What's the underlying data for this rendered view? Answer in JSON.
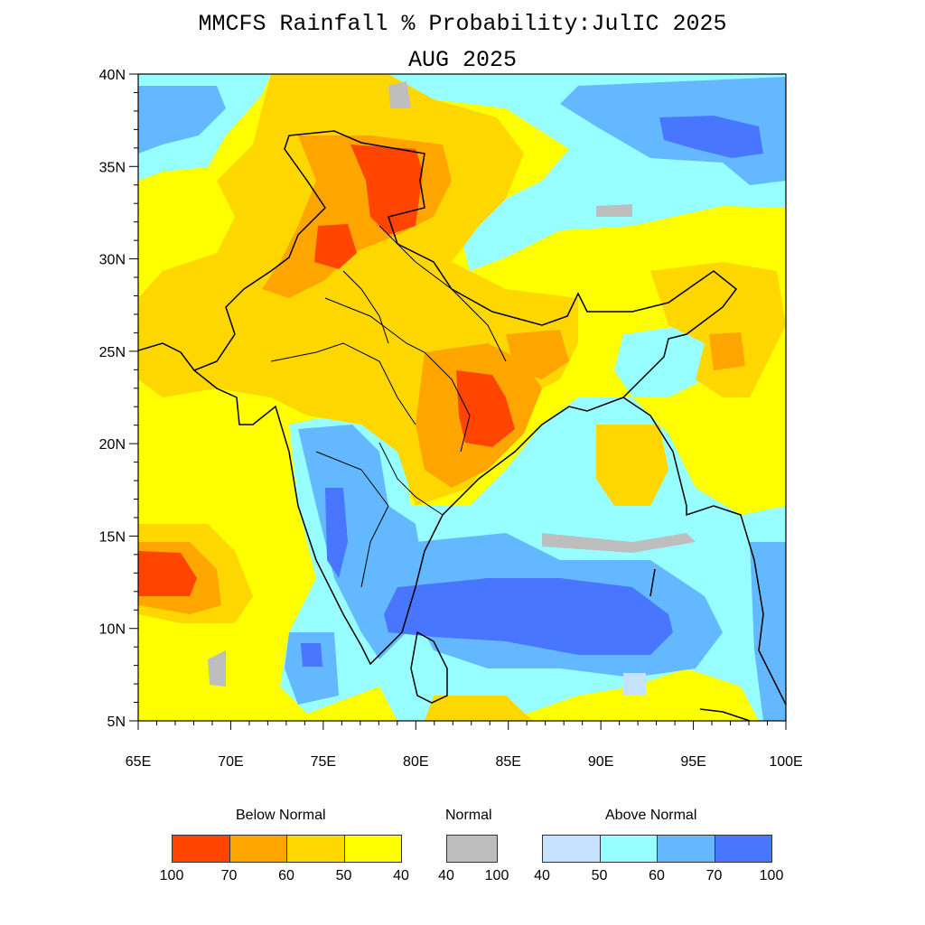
{
  "title": "MMCFS Rainfall % Probability:JulIC 2025",
  "subtitle": "AUG 2025",
  "axes": {
    "lat_labels": [
      "40N",
      "35N",
      "30N",
      "25N",
      "20N",
      "15N",
      "10N",
      "5N"
    ],
    "lon_labels": [
      "65E",
      "70E",
      "75E",
      "80E",
      "85E",
      "90E",
      "95E",
      "100E"
    ],
    "lat_range": [
      5,
      40
    ],
    "lon_range": [
      65,
      100
    ]
  },
  "legend": {
    "below_title": "Below Normal",
    "normal_title": "Normal",
    "above_title": "Above Normal",
    "below_colors": [
      "#ff4500",
      "#ffa500",
      "#ffd700",
      "#ffff00"
    ],
    "normal_color": "#bebebe",
    "above_colors": [
      "#c6e2ff",
      "#97ffff",
      "#63b8ff",
      "#4876ff"
    ],
    "below_ticks": [
      "100",
      "70",
      "60",
      "50",
      "40"
    ],
    "normal_ticks": [
      "40",
      "100"
    ],
    "above_ticks": [
      "40",
      "50",
      "60",
      "70",
      "100"
    ]
  }
}
